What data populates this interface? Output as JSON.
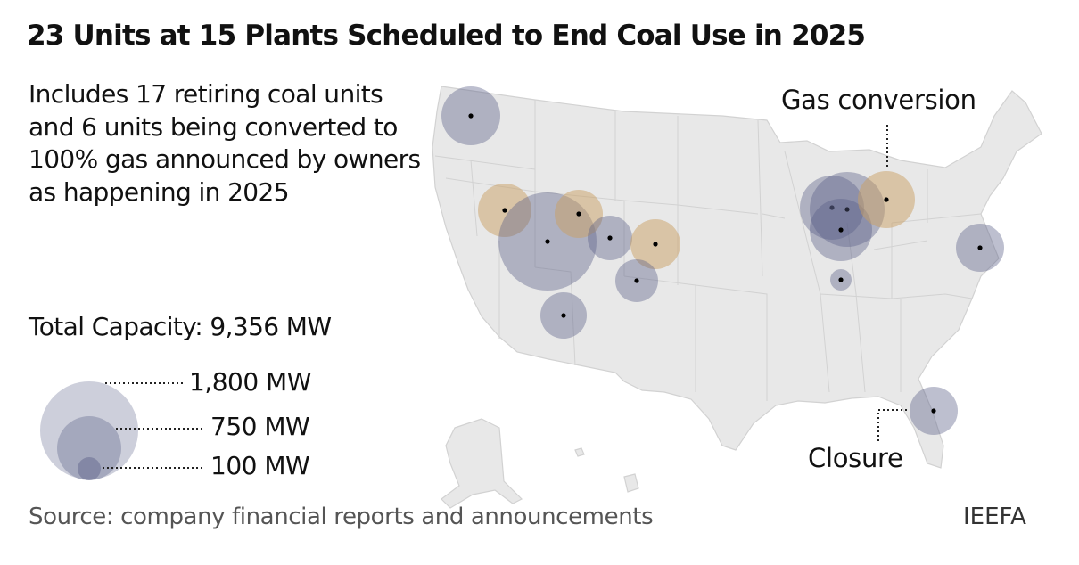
{
  "title": "23 Units at 15 Plants Scheduled to End Coal Use in 2025",
  "subtitle": "Includes 17 retiring coal units and 6 units being converted to 100% gas announced by owners as happening in 2025",
  "total_capacity": "Total Capacity: 9,356 MW",
  "legend": {
    "sizes": [
      {
        "label": "1,800 MW",
        "mw": 1800
      },
      {
        "label": "750 MW",
        "mw": 750
      },
      {
        "label": "100 MW",
        "mw": 100
      }
    ]
  },
  "annotations": {
    "gas": "Gas conversion",
    "closure": "Closure"
  },
  "colors": {
    "closure": "#5a5f87",
    "gas": "#c9a064",
    "land": "#e8e8e8",
    "border": "#d2d2d2"
  },
  "plants": [
    {
      "state": "WA",
      "type": "closure"
    },
    {
      "state": "NV",
      "type": "gas"
    },
    {
      "state": "UT",
      "type": "closure"
    },
    {
      "state": "WY",
      "type": "gas"
    },
    {
      "state": "CO",
      "type": "closure"
    },
    {
      "state": "CO",
      "type": "gas"
    },
    {
      "state": "CO",
      "type": "closure"
    },
    {
      "state": "AZ",
      "type": "closure"
    },
    {
      "state": "WI",
      "type": "closure"
    },
    {
      "state": "WI",
      "type": "closure"
    },
    {
      "state": "IL",
      "type": "closure"
    },
    {
      "state": "MI",
      "type": "gas"
    },
    {
      "state": "IN",
      "type": "closure"
    },
    {
      "state": "MD",
      "type": "closure"
    },
    {
      "state": "FL",
      "type": "closure"
    }
  ],
  "source": "Source: company financial reports and announcements",
  "credit": "IEEFA"
}
